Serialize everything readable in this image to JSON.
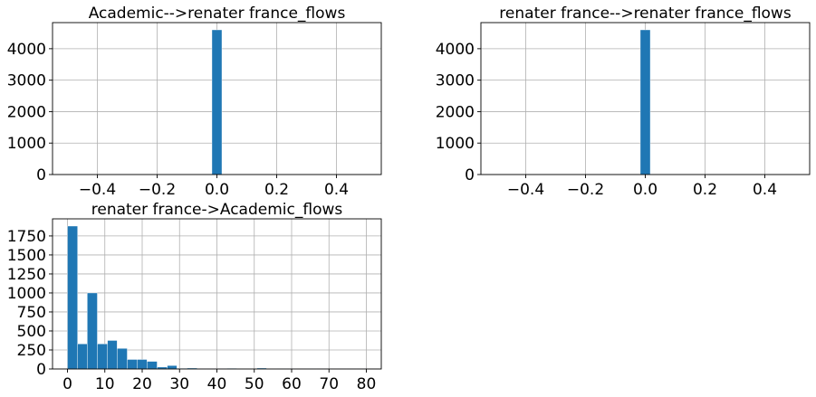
{
  "chart_data": [
    {
      "type": "bar",
      "subtype": "histogram",
      "title": "Academic-->renater france_flows",
      "xlabel": "",
      "ylabel": "",
      "xlim": [
        -0.55,
        0.55
      ],
      "ylim": [
        0,
        4830
      ],
      "xticks": [
        -0.4,
        -0.2,
        0.0,
        0.2,
        0.4
      ],
      "xtick_labels": [
        "−0.4",
        "−0.2",
        "0.0",
        "0.2",
        "0.4"
      ],
      "yticks": [
        0,
        1000,
        2000,
        3000,
        4000
      ],
      "ytick_labels": [
        "0",
        "1000",
        "2000",
        "3000",
        "4000"
      ],
      "bins": [
        {
          "x0": -0.0167,
          "x1": 0.0167,
          "count": 4600
        }
      ],
      "grid": true,
      "color": "#1f77b4"
    },
    {
      "type": "bar",
      "subtype": "histogram",
      "title": "renater france-->renater france_flows",
      "xlabel": "",
      "ylabel": "",
      "xlim": [
        -0.55,
        0.55
      ],
      "ylim": [
        0,
        4830
      ],
      "xticks": [
        -0.4,
        -0.2,
        0.0,
        0.2,
        0.4
      ],
      "xtick_labels": [
        "−0.4",
        "−0.2",
        "0.0",
        "0.2",
        "0.4"
      ],
      "yticks": [
        0,
        1000,
        2000,
        3000,
        4000
      ],
      "ytick_labels": [
        "0",
        "1000",
        "2000",
        "3000",
        "4000"
      ],
      "bins": [
        {
          "x0": -0.0167,
          "x1": 0.0167,
          "count": 4600
        }
      ],
      "grid": true,
      "color": "#1f77b4"
    },
    {
      "type": "bar",
      "subtype": "histogram",
      "title": "renater france->Academic_flows",
      "xlabel": "",
      "ylabel": "",
      "xlim": [
        -4,
        84
      ],
      "ylim": [
        0,
        1975
      ],
      "xticks": [
        0,
        10,
        20,
        30,
        40,
        50,
        60,
        70,
        80
      ],
      "xtick_labels": [
        "0",
        "10",
        "20",
        "30",
        "40",
        "50",
        "60",
        "70",
        "80"
      ],
      "yticks": [
        0,
        250,
        500,
        750,
        1000,
        1250,
        1500,
        1750
      ],
      "ytick_labels": [
        "0",
        "250",
        "500",
        "750",
        "1000",
        "1250",
        "1500",
        "1750"
      ],
      "bins": [
        {
          "x0": 0.0,
          "x1": 2.7,
          "count": 1880
        },
        {
          "x0": 2.7,
          "x1": 5.3,
          "count": 330
        },
        {
          "x0": 5.3,
          "x1": 8.0,
          "count": 1000
        },
        {
          "x0": 8.0,
          "x1": 10.7,
          "count": 330
        },
        {
          "x0": 10.7,
          "x1": 13.3,
          "count": 375
        },
        {
          "x0": 13.3,
          "x1": 16.0,
          "count": 270
        },
        {
          "x0": 16.0,
          "x1": 18.7,
          "count": 125
        },
        {
          "x0": 18.7,
          "x1": 21.3,
          "count": 125
        },
        {
          "x0": 21.3,
          "x1": 24.0,
          "count": 100
        },
        {
          "x0": 24.0,
          "x1": 26.7,
          "count": 25
        },
        {
          "x0": 26.7,
          "x1": 29.3,
          "count": 45
        },
        {
          "x0": 29.3,
          "x1": 32.0,
          "count": 8
        },
        {
          "x0": 32.0,
          "x1": 34.7,
          "count": 12
        },
        {
          "x0": 34.7,
          "x1": 37.3,
          "count": 6
        },
        {
          "x0": 37.3,
          "x1": 40.0,
          "count": 6
        },
        {
          "x0": 40.0,
          "x1": 42.7,
          "count": 6
        },
        {
          "x0": 42.7,
          "x1": 45.3,
          "count": 8
        },
        {
          "x0": 45.3,
          "x1": 48.0,
          "count": 3
        },
        {
          "x0": 48.0,
          "x1": 50.7,
          "count": 3
        },
        {
          "x0": 50.7,
          "x1": 53.3,
          "count": 12
        },
        {
          "x0": 53.3,
          "x1": 56.0,
          "count": 3
        },
        {
          "x0": 56.0,
          "x1": 58.7,
          "count": 2
        },
        {
          "x0": 58.7,
          "x1": 61.3,
          "count": 2
        },
        {
          "x0": 61.3,
          "x1": 64.0,
          "count": 1
        },
        {
          "x0": 64.0,
          "x1": 66.7,
          "count": 2
        },
        {
          "x0": 66.7,
          "x1": 69.3,
          "count": 1
        },
        {
          "x0": 69.3,
          "x1": 72.0,
          "count": 1
        },
        {
          "x0": 72.0,
          "x1": 74.7,
          "count": 1
        },
        {
          "x0": 74.7,
          "x1": 77.3,
          "count": 1
        },
        {
          "x0": 77.3,
          "x1": 80.0,
          "count": 1
        }
      ],
      "grid": true,
      "color": "#1f77b4"
    }
  ]
}
